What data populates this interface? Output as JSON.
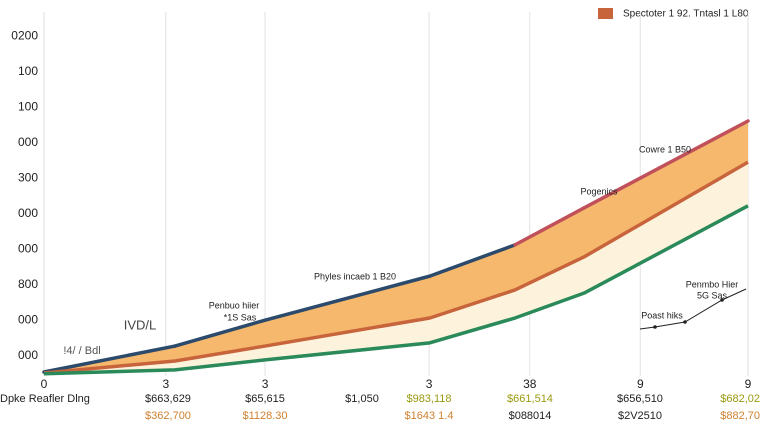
{
  "chart_data": {
    "type": "area",
    "legend": {
      "name": "Spectoter 1 92. Tntasl 1 L80",
      "color": "#c8643c",
      "corner": "top-right"
    },
    "x": [
      0,
      18.6,
      31.4,
      54.8,
      66.9,
      76.7,
      100
    ],
    "xlim": [
      0,
      100
    ],
    "xticks": [
      {
        "value": 0,
        "label": "0"
      },
      {
        "value": 17.3,
        "label": "3"
      },
      {
        "value": 31.4,
        "label": "3"
      },
      {
        "value": 54.7,
        "label": "3"
      },
      {
        "value": 69,
        "label": "38"
      },
      {
        "value": 84.7,
        "label": "9"
      },
      {
        "value": 100,
        "label": "9"
      }
    ],
    "ylim": [
      -0.5,
      9.7
    ],
    "yticks": [
      {
        "value": 0,
        "label": "000"
      },
      {
        "value": 1,
        "label": "000"
      },
      {
        "value": 2,
        "label": "800"
      },
      {
        "value": 3,
        "label": "000"
      },
      {
        "value": 4,
        "label": "000"
      },
      {
        "value": 5,
        "label": "300"
      },
      {
        "value": 6,
        "label": "000"
      },
      {
        "value": 7,
        "label": "100"
      },
      {
        "value": 8,
        "label": "100"
      },
      {
        "value": 9,
        "label": "0200"
      }
    ],
    "grid": true,
    "series": [
      {
        "color": "#2c4a6b",
        "segment_colors": [
          "#2c4a6b",
          "#2c4a6b",
          "#2c4a6b",
          "#2c4a6b",
          "#c0505a",
          "#c0505a"
        ],
        "fill": "#f6b86c",
        "values": [
          -0.45,
          0.28,
          1.01,
          2.25,
          3.13,
          4.17,
          6.62
        ]
      },
      {
        "name": "Spectoter 1 92. Tntasl 1 L80",
        "color": "#c8643c",
        "fill": "#fdf3dc",
        "values": [
          -0.48,
          -0.14,
          0.28,
          1.07,
          1.86,
          2.79,
          5.46
        ]
      },
      {
        "color": "#2a8a5a",
        "values": [
          -0.5,
          -0.39,
          -0.11,
          0.37,
          1.07,
          1.77,
          4.23
        ]
      }
    ],
    "annotations": [
      "Cowre 1 B50",
      "Pogenics",
      "Phyles incaeb 1 B20",
      "Penbuo hiier",
      "*1S Sas",
      "IVD/L",
      "!4/ / Bdl",
      "Penmbo Hier",
      "5G Sas",
      "Poast hiks"
    ],
    "table": {
      "header": "Dpke Reafler Dlng",
      "rows": [
        [
          "$663,629",
          "$65,615",
          "$1,050",
          "$983,118",
          "$661,514",
          "$656,510",
          "$682,02"
        ],
        [
          "$362,700",
          "$1128.30",
          "$1643 1.4",
          "$088014",
          "$2V2510",
          "$882,70"
        ]
      ],
      "row_colors": [
        [
          "#222222",
          "#222222",
          "#222222",
          "#9a9a10",
          "#9a9a10",
          "#222222",
          "#9a9a10"
        ],
        [
          "#d08030",
          "#d08030",
          "#d08030",
          "#222222",
          "#222222",
          "#d08030"
        ]
      ]
    }
  }
}
